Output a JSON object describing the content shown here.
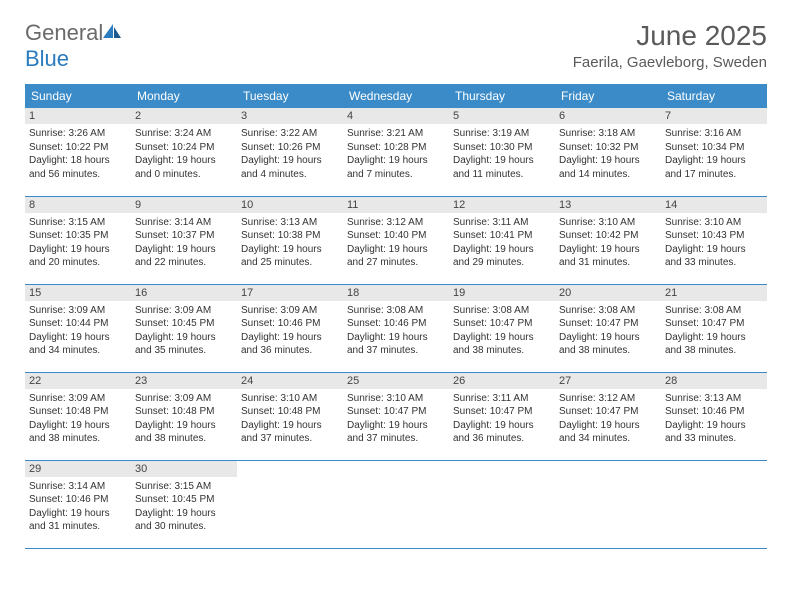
{
  "logo": {
    "general": "General",
    "blue": "Blue"
  },
  "title": "June 2025",
  "location": "Faerila, Gaevleborg, Sweden",
  "colors": {
    "header_bg": "#3b8bc8",
    "header_text": "#ffffff",
    "daynum_bg": "#e8e8e8",
    "row_border": "#3b8bc8",
    "text": "#333333",
    "title_text": "#5a5a5a"
  },
  "day_headers": [
    "Sunday",
    "Monday",
    "Tuesday",
    "Wednesday",
    "Thursday",
    "Friday",
    "Saturday"
  ],
  "weeks": [
    [
      {
        "n": "1",
        "sr": "3:26 AM",
        "ss": "10:22 PM",
        "dl": "18 hours and 56 minutes."
      },
      {
        "n": "2",
        "sr": "3:24 AM",
        "ss": "10:24 PM",
        "dl": "19 hours and 0 minutes."
      },
      {
        "n": "3",
        "sr": "3:22 AM",
        "ss": "10:26 PM",
        "dl": "19 hours and 4 minutes."
      },
      {
        "n": "4",
        "sr": "3:21 AM",
        "ss": "10:28 PM",
        "dl": "19 hours and 7 minutes."
      },
      {
        "n": "5",
        "sr": "3:19 AM",
        "ss": "10:30 PM",
        "dl": "19 hours and 11 minutes."
      },
      {
        "n": "6",
        "sr": "3:18 AM",
        "ss": "10:32 PM",
        "dl": "19 hours and 14 minutes."
      },
      {
        "n": "7",
        "sr": "3:16 AM",
        "ss": "10:34 PM",
        "dl": "19 hours and 17 minutes."
      }
    ],
    [
      {
        "n": "8",
        "sr": "3:15 AM",
        "ss": "10:35 PM",
        "dl": "19 hours and 20 minutes."
      },
      {
        "n": "9",
        "sr": "3:14 AM",
        "ss": "10:37 PM",
        "dl": "19 hours and 22 minutes."
      },
      {
        "n": "10",
        "sr": "3:13 AM",
        "ss": "10:38 PM",
        "dl": "19 hours and 25 minutes."
      },
      {
        "n": "11",
        "sr": "3:12 AM",
        "ss": "10:40 PM",
        "dl": "19 hours and 27 minutes."
      },
      {
        "n": "12",
        "sr": "3:11 AM",
        "ss": "10:41 PM",
        "dl": "19 hours and 29 minutes."
      },
      {
        "n": "13",
        "sr": "3:10 AM",
        "ss": "10:42 PM",
        "dl": "19 hours and 31 minutes."
      },
      {
        "n": "14",
        "sr": "3:10 AM",
        "ss": "10:43 PM",
        "dl": "19 hours and 33 minutes."
      }
    ],
    [
      {
        "n": "15",
        "sr": "3:09 AM",
        "ss": "10:44 PM",
        "dl": "19 hours and 34 minutes."
      },
      {
        "n": "16",
        "sr": "3:09 AM",
        "ss": "10:45 PM",
        "dl": "19 hours and 35 minutes."
      },
      {
        "n": "17",
        "sr": "3:09 AM",
        "ss": "10:46 PM",
        "dl": "19 hours and 36 minutes."
      },
      {
        "n": "18",
        "sr": "3:08 AM",
        "ss": "10:46 PM",
        "dl": "19 hours and 37 minutes."
      },
      {
        "n": "19",
        "sr": "3:08 AM",
        "ss": "10:47 PM",
        "dl": "19 hours and 38 minutes."
      },
      {
        "n": "20",
        "sr": "3:08 AM",
        "ss": "10:47 PM",
        "dl": "19 hours and 38 minutes."
      },
      {
        "n": "21",
        "sr": "3:08 AM",
        "ss": "10:47 PM",
        "dl": "19 hours and 38 minutes."
      }
    ],
    [
      {
        "n": "22",
        "sr": "3:09 AM",
        "ss": "10:48 PM",
        "dl": "19 hours and 38 minutes."
      },
      {
        "n": "23",
        "sr": "3:09 AM",
        "ss": "10:48 PM",
        "dl": "19 hours and 38 minutes."
      },
      {
        "n": "24",
        "sr": "3:10 AM",
        "ss": "10:48 PM",
        "dl": "19 hours and 37 minutes."
      },
      {
        "n": "25",
        "sr": "3:10 AM",
        "ss": "10:47 PM",
        "dl": "19 hours and 37 minutes."
      },
      {
        "n": "26",
        "sr": "3:11 AM",
        "ss": "10:47 PM",
        "dl": "19 hours and 36 minutes."
      },
      {
        "n": "27",
        "sr": "3:12 AM",
        "ss": "10:47 PM",
        "dl": "19 hours and 34 minutes."
      },
      {
        "n": "28",
        "sr": "3:13 AM",
        "ss": "10:46 PM",
        "dl": "19 hours and 33 minutes."
      }
    ],
    [
      {
        "n": "29",
        "sr": "3:14 AM",
        "ss": "10:46 PM",
        "dl": "19 hours and 31 minutes."
      },
      {
        "n": "30",
        "sr": "3:15 AM",
        "ss": "10:45 PM",
        "dl": "19 hours and 30 minutes."
      },
      null,
      null,
      null,
      null,
      null
    ]
  ],
  "labels": {
    "sunrise": "Sunrise: ",
    "sunset": "Sunset: ",
    "daylight": "Daylight: "
  }
}
